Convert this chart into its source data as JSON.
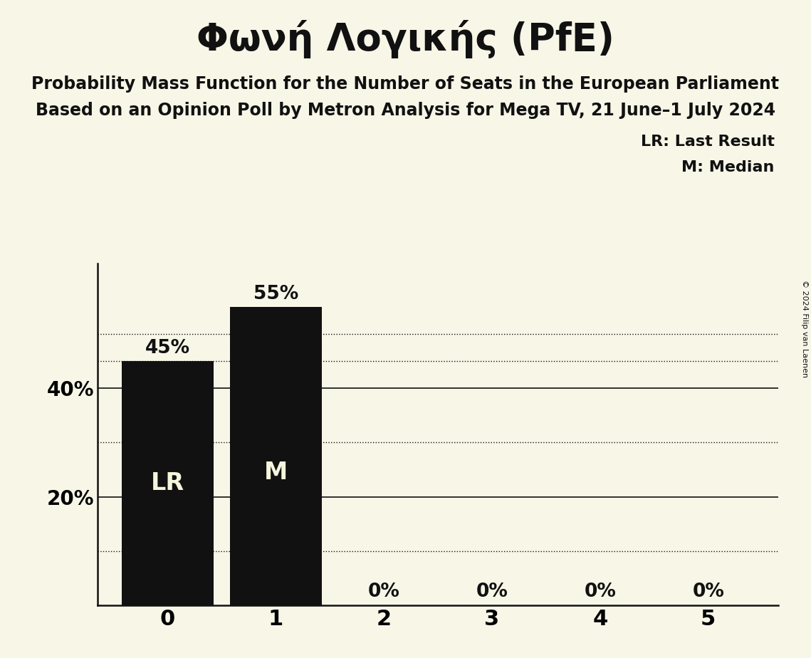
{
  "title": "Φωνή Λογικής (PfE)",
  "subtitle_line1": "Probability Mass Function for the Number of Seats in the European Parliament",
  "subtitle_line2": "Based on an Opinion Poll by Metron Analysis for Mega TV, 21 June–1 July 2024",
  "categories": [
    0,
    1,
    2,
    3,
    4,
    5
  ],
  "values": [
    0.45,
    0.55,
    0.0,
    0.0,
    0.0,
    0.0
  ],
  "bar_color": "#111111",
  "background_color": "#f7f6e7",
  "dotted_lines": [
    0.1,
    0.3,
    0.45,
    0.5
  ],
  "solid_lines": [
    0.2,
    0.4
  ],
  "legend_LR": "LR: Last Result",
  "legend_M": "M: Median",
  "copyright": "© 2024 Filip van Laenen",
  "bar_label_color": "#f5f5dc",
  "bar_label_fontsize": 24,
  "pct_label_fontsize": 19,
  "title_fontsize": 38,
  "subtitle_fontsize": 17,
  "legend_fontsize": 16,
  "ytick_fontsize": 20,
  "xtick_fontsize": 22,
  "ylim": [
    0,
    0.63
  ]
}
